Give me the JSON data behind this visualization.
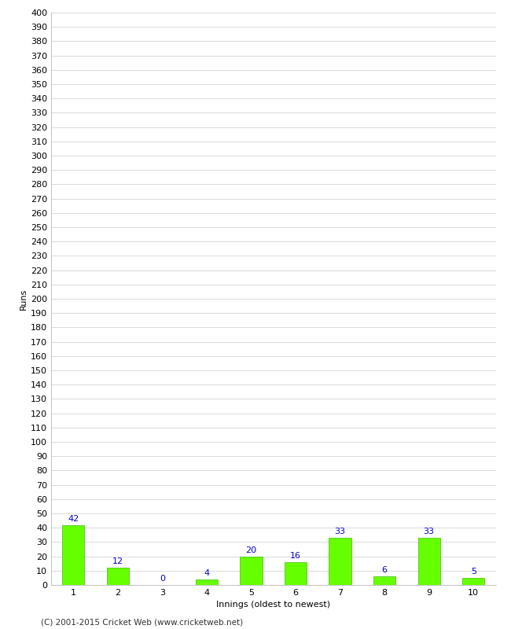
{
  "categories": [
    1,
    2,
    3,
    4,
    5,
    6,
    7,
    8,
    9,
    10
  ],
  "values": [
    42,
    12,
    0,
    4,
    20,
    16,
    33,
    6,
    33,
    5
  ],
  "bar_color": "#66ff00",
  "bar_edge_color": "#44bb00",
  "label_color": "#0000cc",
  "xlabel": "Innings (oldest to newest)",
  "ylabel": "Runs",
  "ylim": [
    0,
    400
  ],
  "ytick_step": 10,
  "background_color": "#ffffff",
  "grid_color": "#cccccc",
  "footer": "(C) 2001-2015 Cricket Web (www.cricketweb.net)"
}
